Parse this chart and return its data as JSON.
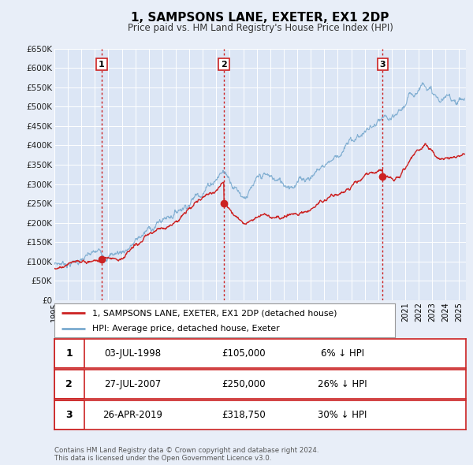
{
  "title": "1, SAMPSONS LANE, EXETER, EX1 2DP",
  "subtitle": "Price paid vs. HM Land Registry's House Price Index (HPI)",
  "bg_color": "#e8eef8",
  "plot_bg_color": "#dce6f5",
  "grid_color": "#ffffff",
  "ylim": [
    0,
    650000
  ],
  "yticks": [
    0,
    50000,
    100000,
    150000,
    200000,
    250000,
    300000,
    350000,
    400000,
    450000,
    500000,
    550000,
    600000,
    650000
  ],
  "ytick_labels": [
    "£0",
    "£50K",
    "£100K",
    "£150K",
    "£200K",
    "£250K",
    "£300K",
    "£350K",
    "£400K",
    "£450K",
    "£500K",
    "£550K",
    "£600K",
    "£650K"
  ],
  "xlim_start": 1995.0,
  "xlim_end": 2025.5,
  "xtick_years": [
    1995,
    1996,
    1997,
    1998,
    1999,
    2000,
    2001,
    2002,
    2003,
    2004,
    2005,
    2006,
    2007,
    2008,
    2009,
    2010,
    2011,
    2012,
    2013,
    2014,
    2015,
    2016,
    2017,
    2018,
    2019,
    2020,
    2021,
    2022,
    2023,
    2024,
    2025
  ],
  "hpi_color": "#7aaacf",
  "price_color": "#cc2222",
  "sale_marker_color": "#cc2222",
  "sale_marker_size": 7,
  "vline_color": "#cc2222",
  "vline_style": ":",
  "sales": [
    {
      "num": 1,
      "date_label": "03-JUL-1998",
      "date_x": 1998.5,
      "price": 105000,
      "price_label": "£105,000",
      "pct": "6% ↓ HPI"
    },
    {
      "num": 2,
      "date_label": "27-JUL-2007",
      "date_x": 2007.57,
      "price": 250000,
      "price_label": "£250,000",
      "pct": "26% ↓ HPI"
    },
    {
      "num": 3,
      "date_label": "26-APR-2019",
      "date_x": 2019.32,
      "price": 318750,
      "price_label": "£318,750",
      "pct": "30% ↓ HPI"
    }
  ],
  "legend_label_price": "1, SAMPSONS LANE, EXETER, EX1 2DP (detached house)",
  "legend_label_hpi": "HPI: Average price, detached house, Exeter",
  "footer_line1": "Contains HM Land Registry data © Crown copyright and database right 2024.",
  "footer_line2": "This data is licensed under the Open Government Licence v3.0."
}
